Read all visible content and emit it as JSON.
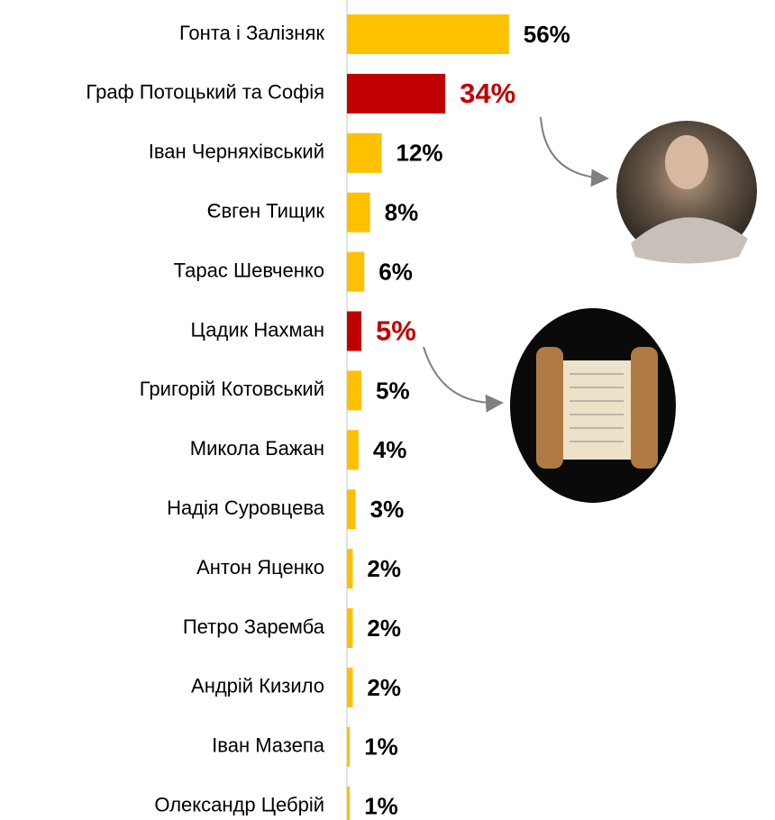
{
  "chart_data": {
    "type": "bar",
    "orientation": "horizontal",
    "categories": [
      "Гонта і Залізняк",
      "Граф Потоцький та Софія",
      "Іван Черняхівський",
      "Євген Тищик",
      "Тарас Шевченко",
      "Цадик Нахман",
      "Григорій Котовський",
      "Микола Бажан",
      "Надія Суровцева",
      "Антон Яценко",
      "Петро Заремба",
      "Андрій Кизило",
      "Іван Мазепа",
      "Олександр Цебрій"
    ],
    "values": [
      56,
      34,
      12,
      8,
      6,
      5,
      5,
      4,
      3,
      2,
      2,
      2,
      1,
      1
    ],
    "value_labels": [
      "56%",
      "34%",
      "12%",
      "8%",
      "6%",
      "5%",
      "5%",
      "4%",
      "3%",
      "2%",
      "2%",
      "2%",
      "1%",
      "1%"
    ],
    "colors": [
      "#FFC000",
      "#C00000",
      "#FFC000",
      "#FFC000",
      "#FFC000",
      "#C00000",
      "#FFC000",
      "#FFC000",
      "#FFC000",
      "#FFC000",
      "#FFC000",
      "#FFC000",
      "#FFC000",
      "#FFC000"
    ]
  }
}
